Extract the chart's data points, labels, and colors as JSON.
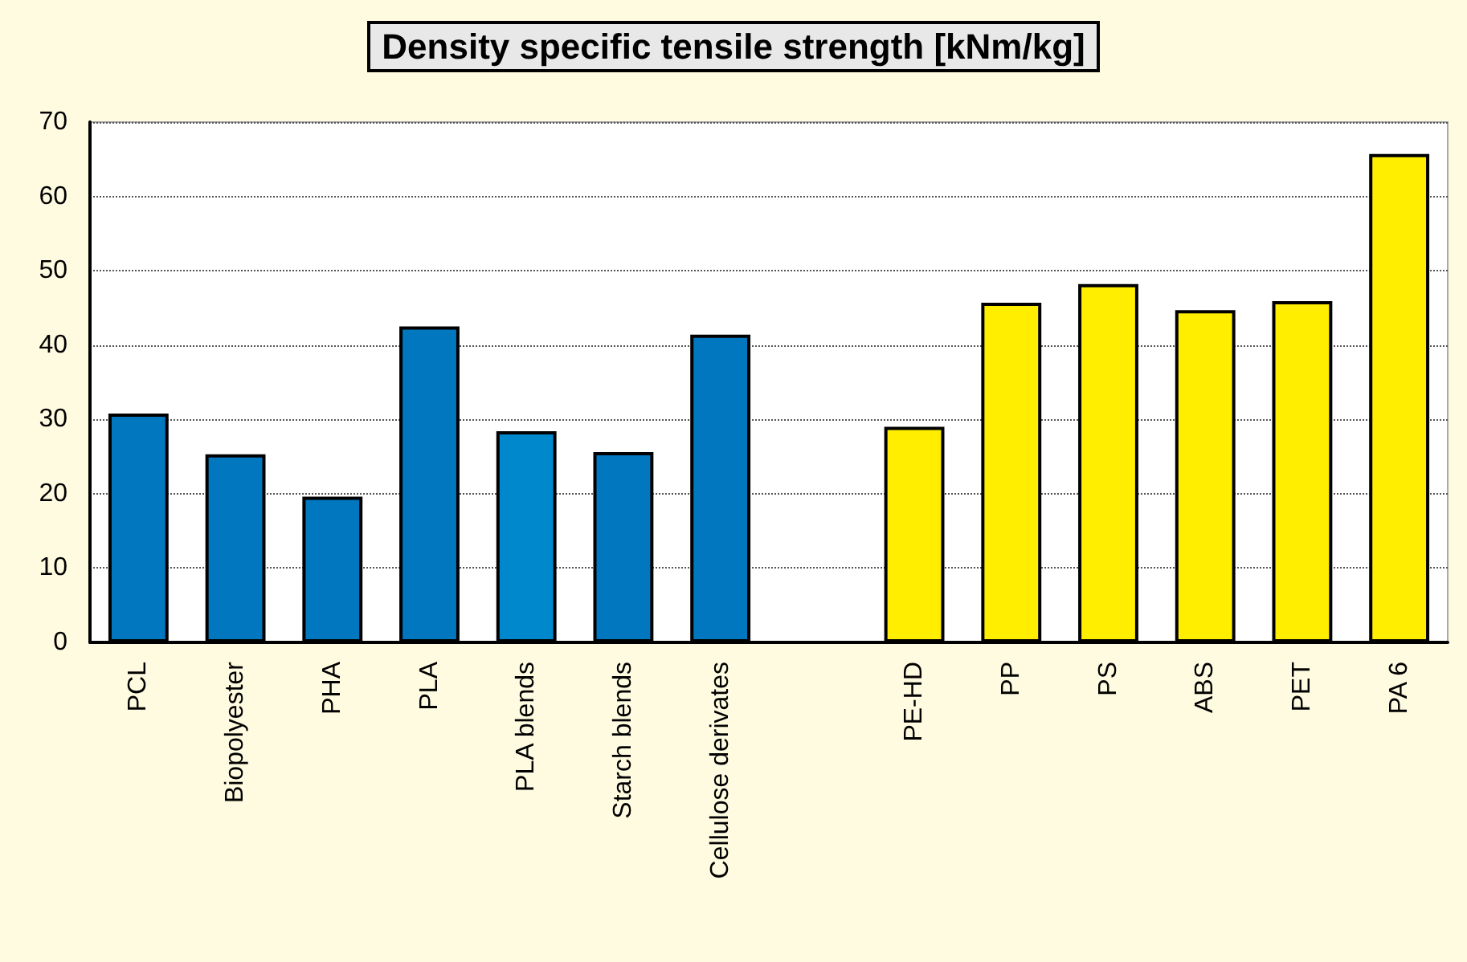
{
  "chart_data": {
    "type": "bar",
    "title": "Density specific tensile strength [kNm/kg]",
    "categories": [
      "PCL",
      "Biopolyester",
      "PHA",
      "PLA",
      "PLA blends",
      "Starch blends",
      "Cellulose derivates",
      null,
      "PE-HD",
      "PP",
      "PS",
      "ABS",
      "PET",
      "PA 6"
    ],
    "values": [
      30.8,
      25.3,
      19.6,
      42.5,
      28.4,
      25.6,
      41.4,
      null,
      29.0,
      45.7,
      48.2,
      44.7,
      45.9,
      65.7
    ],
    "colors": [
      "#0077bf",
      "#0077bf",
      "#0077bf",
      "#0077bf",
      "#0088cc",
      "#0077bf",
      "#0077bf",
      "#0077bf",
      "#ffee00",
      "#ffee00",
      "#ffee00",
      "#ffee00",
      "#ffee00",
      "#ffee00"
    ],
    "ylim": [
      0,
      70
    ],
    "yticks": [
      0,
      10,
      20,
      30,
      40,
      50,
      60,
      70
    ],
    "grid": "y"
  }
}
